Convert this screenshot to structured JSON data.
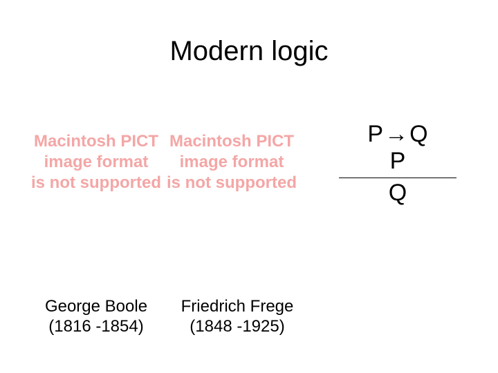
{
  "title": "Modern logic",
  "title_fontsize": 40,
  "title_color": "#000000",
  "background_color": "#ffffff",
  "placeholders": [
    {
      "line1": "Macintosh PICT",
      "line2": "image format",
      "line3": "is not supported"
    },
    {
      "line1": "Macintosh PICT",
      "line2": "image format",
      "line3": "is not supported"
    }
  ],
  "placeholder_color": "#f4a6a6",
  "placeholder_fontsize": 24,
  "placeholder_fontweight": 700,
  "inference_rule": {
    "premise1_left": "P",
    "arrow": "→",
    "premise1_right": "Q",
    "premise2": "P",
    "conclusion": "Q",
    "fontsize": 34,
    "color": "#000000",
    "line_color": "#000000"
  },
  "captions": [
    {
      "name": "George Boole",
      "years": "(1816 -1854)"
    },
    {
      "name": "Friedrich Frege",
      "years": "(1848 -1925)"
    }
  ],
  "caption_fontsize": 24,
  "caption_color": "#000000"
}
